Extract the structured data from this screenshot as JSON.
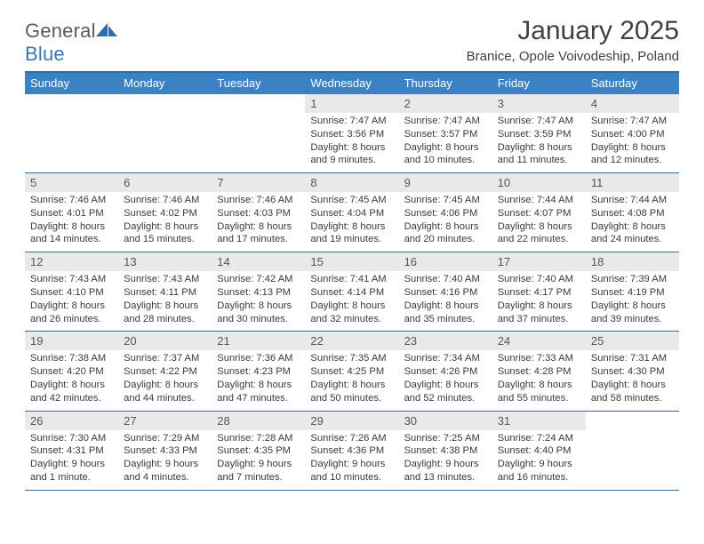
{
  "logo": {
    "text1": "General",
    "text2": "Blue"
  },
  "title": "January 2025",
  "subtitle": "Branice, Opole Voivodeship, Poland",
  "colors": {
    "header_bg": "#3b82c4",
    "header_border": "#2e6ea8",
    "daynum_bg": "#e9e9e9",
    "text_dark": "#404040",
    "cell_text": "#3a3a3a",
    "logo_gray": "#5a5a5a",
    "logo_blue": "#3b78b5"
  },
  "dow": [
    "Sunday",
    "Monday",
    "Tuesday",
    "Wednesday",
    "Thursday",
    "Friday",
    "Saturday"
  ],
  "weeks": [
    [
      null,
      null,
      null,
      {
        "n": "1",
        "sr": "7:47 AM",
        "ss": "3:56 PM",
        "dl": "8 hours and 9 minutes."
      },
      {
        "n": "2",
        "sr": "7:47 AM",
        "ss": "3:57 PM",
        "dl": "8 hours and 10 minutes."
      },
      {
        "n": "3",
        "sr": "7:47 AM",
        "ss": "3:59 PM",
        "dl": "8 hours and 11 minutes."
      },
      {
        "n": "4",
        "sr": "7:47 AM",
        "ss": "4:00 PM",
        "dl": "8 hours and 12 minutes."
      }
    ],
    [
      {
        "n": "5",
        "sr": "7:46 AM",
        "ss": "4:01 PM",
        "dl": "8 hours and 14 minutes."
      },
      {
        "n": "6",
        "sr": "7:46 AM",
        "ss": "4:02 PM",
        "dl": "8 hours and 15 minutes."
      },
      {
        "n": "7",
        "sr": "7:46 AM",
        "ss": "4:03 PM",
        "dl": "8 hours and 17 minutes."
      },
      {
        "n": "8",
        "sr": "7:45 AM",
        "ss": "4:04 PM",
        "dl": "8 hours and 19 minutes."
      },
      {
        "n": "9",
        "sr": "7:45 AM",
        "ss": "4:06 PM",
        "dl": "8 hours and 20 minutes."
      },
      {
        "n": "10",
        "sr": "7:44 AM",
        "ss": "4:07 PM",
        "dl": "8 hours and 22 minutes."
      },
      {
        "n": "11",
        "sr": "7:44 AM",
        "ss": "4:08 PM",
        "dl": "8 hours and 24 minutes."
      }
    ],
    [
      {
        "n": "12",
        "sr": "7:43 AM",
        "ss": "4:10 PM",
        "dl": "8 hours and 26 minutes."
      },
      {
        "n": "13",
        "sr": "7:43 AM",
        "ss": "4:11 PM",
        "dl": "8 hours and 28 minutes."
      },
      {
        "n": "14",
        "sr": "7:42 AM",
        "ss": "4:13 PM",
        "dl": "8 hours and 30 minutes."
      },
      {
        "n": "15",
        "sr": "7:41 AM",
        "ss": "4:14 PM",
        "dl": "8 hours and 32 minutes."
      },
      {
        "n": "16",
        "sr": "7:40 AM",
        "ss": "4:16 PM",
        "dl": "8 hours and 35 minutes."
      },
      {
        "n": "17",
        "sr": "7:40 AM",
        "ss": "4:17 PM",
        "dl": "8 hours and 37 minutes."
      },
      {
        "n": "18",
        "sr": "7:39 AM",
        "ss": "4:19 PM",
        "dl": "8 hours and 39 minutes."
      }
    ],
    [
      {
        "n": "19",
        "sr": "7:38 AM",
        "ss": "4:20 PM",
        "dl": "8 hours and 42 minutes."
      },
      {
        "n": "20",
        "sr": "7:37 AM",
        "ss": "4:22 PM",
        "dl": "8 hours and 44 minutes."
      },
      {
        "n": "21",
        "sr": "7:36 AM",
        "ss": "4:23 PM",
        "dl": "8 hours and 47 minutes."
      },
      {
        "n": "22",
        "sr": "7:35 AM",
        "ss": "4:25 PM",
        "dl": "8 hours and 50 minutes."
      },
      {
        "n": "23",
        "sr": "7:34 AM",
        "ss": "4:26 PM",
        "dl": "8 hours and 52 minutes."
      },
      {
        "n": "24",
        "sr": "7:33 AM",
        "ss": "4:28 PM",
        "dl": "8 hours and 55 minutes."
      },
      {
        "n": "25",
        "sr": "7:31 AM",
        "ss": "4:30 PM",
        "dl": "8 hours and 58 minutes."
      }
    ],
    [
      {
        "n": "26",
        "sr": "7:30 AM",
        "ss": "4:31 PM",
        "dl": "9 hours and 1 minute."
      },
      {
        "n": "27",
        "sr": "7:29 AM",
        "ss": "4:33 PM",
        "dl": "9 hours and 4 minutes."
      },
      {
        "n": "28",
        "sr": "7:28 AM",
        "ss": "4:35 PM",
        "dl": "9 hours and 7 minutes."
      },
      {
        "n": "29",
        "sr": "7:26 AM",
        "ss": "4:36 PM",
        "dl": "9 hours and 10 minutes."
      },
      {
        "n": "30",
        "sr": "7:25 AM",
        "ss": "4:38 PM",
        "dl": "9 hours and 13 minutes."
      },
      {
        "n": "31",
        "sr": "7:24 AM",
        "ss": "4:40 PM",
        "dl": "9 hours and 16 minutes."
      },
      null
    ]
  ],
  "labels": {
    "sunrise": "Sunrise:",
    "sunset": "Sunset:",
    "daylight": "Daylight:"
  }
}
